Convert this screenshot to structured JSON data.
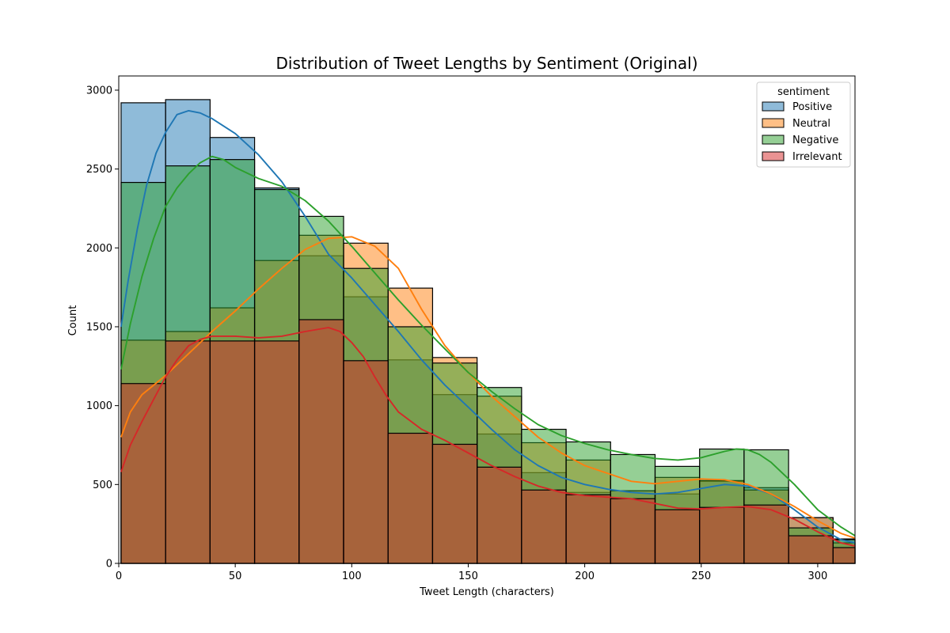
{
  "chart_data": {
    "type": "histogram",
    "title": "Distribution of Tweet Lengths by Sentiment (Original)",
    "xlabel": "Tweet Length (characters)",
    "ylabel": "Count",
    "xlim": [
      0,
      316
    ],
    "ylim": [
      0,
      3090
    ],
    "xticks": [
      "0",
      "50",
      "100",
      "150",
      "200",
      "250",
      "300"
    ],
    "yticks": [
      "0",
      "500",
      "1000",
      "1500",
      "2000",
      "2500",
      "3000"
    ],
    "bin_edges": [
      1,
      20.1,
      39.2,
      58.3,
      77.4,
      96.5,
      115.6,
      134.7,
      153.8,
      172.9,
      192,
      211.1,
      230.2,
      249.3,
      268.4,
      287.5,
      306.6,
      316
    ],
    "legend": {
      "title": "sentiment",
      "position": "upper right"
    },
    "series": [
      {
        "name": "Positive",
        "color": "#1f77b4",
        "counts": [
          2920,
          2940,
          2700,
          2380,
          1950,
          1690,
          1290,
          1070,
          820,
          575,
          450,
          460,
          440,
          520,
          480,
          290,
          155
        ],
        "kde": [
          [
            1,
            1500
          ],
          [
            4,
            1790
          ],
          [
            8,
            2120
          ],
          [
            12,
            2400
          ],
          [
            16,
            2600
          ],
          [
            20,
            2730
          ],
          [
            25,
            2845
          ],
          [
            30,
            2870
          ],
          [
            35,
            2855
          ],
          [
            40,
            2820
          ],
          [
            50,
            2725
          ],
          [
            60,
            2590
          ],
          [
            70,
            2420
          ],
          [
            80,
            2200
          ],
          [
            90,
            1960
          ],
          [
            100,
            1810
          ],
          [
            110,
            1640
          ],
          [
            120,
            1470
          ],
          [
            130,
            1290
          ],
          [
            140,
            1130
          ],
          [
            150,
            990
          ],
          [
            160,
            850
          ],
          [
            170,
            720
          ],
          [
            180,
            620
          ],
          [
            190,
            545
          ],
          [
            200,
            500
          ],
          [
            210,
            470
          ],
          [
            220,
            450
          ],
          [
            230,
            440
          ],
          [
            240,
            450
          ],
          [
            250,
            475
          ],
          [
            260,
            500
          ],
          [
            270,
            490
          ],
          [
            280,
            440
          ],
          [
            290,
            340
          ],
          [
            300,
            230
          ],
          [
            310,
            150
          ],
          [
            316,
            130
          ]
        ]
      },
      {
        "name": "Neutral",
        "color": "#ff7f0e",
        "counts": [
          1415,
          1470,
          1620,
          1920,
          2080,
          2030,
          1745,
          1305,
          1060,
          765,
          655,
          460,
          545,
          525,
          465,
          290,
          130
        ],
        "kde": [
          [
            1,
            800
          ],
          [
            5,
            960
          ],
          [
            10,
            1070
          ],
          [
            20,
            1190
          ],
          [
            30,
            1330
          ],
          [
            40,
            1470
          ],
          [
            50,
            1600
          ],
          [
            60,
            1740
          ],
          [
            70,
            1870
          ],
          [
            80,
            1990
          ],
          [
            90,
            2060
          ],
          [
            100,
            2070
          ],
          [
            110,
            2010
          ],
          [
            120,
            1870
          ],
          [
            130,
            1610
          ],
          [
            140,
            1380
          ],
          [
            150,
            1210
          ],
          [
            160,
            1060
          ],
          [
            170,
            930
          ],
          [
            180,
            800
          ],
          [
            190,
            700
          ],
          [
            200,
            620
          ],
          [
            210,
            570
          ],
          [
            220,
            520
          ],
          [
            230,
            505
          ],
          [
            240,
            520
          ],
          [
            250,
            535
          ],
          [
            260,
            530
          ],
          [
            270,
            500
          ],
          [
            280,
            440
          ],
          [
            290,
            360
          ],
          [
            300,
            270
          ],
          [
            310,
            190
          ],
          [
            316,
            160
          ]
        ]
      },
      {
        "name": "Negative",
        "color": "#2ca02c",
        "counts": [
          2415,
          2520,
          2560,
          2370,
          2200,
          1870,
          1500,
          1270,
          1115,
          850,
          770,
          690,
          615,
          725,
          720,
          225,
          150
        ],
        "kde": [
          [
            1,
            1230
          ],
          [
            5,
            1520
          ],
          [
            10,
            1820
          ],
          [
            15,
            2060
          ],
          [
            20,
            2260
          ],
          [
            25,
            2380
          ],
          [
            30,
            2470
          ],
          [
            35,
            2540
          ],
          [
            40,
            2580
          ],
          [
            45,
            2560
          ],
          [
            50,
            2510
          ],
          [
            60,
            2440
          ],
          [
            70,
            2390
          ],
          [
            80,
            2300
          ],
          [
            90,
            2170
          ],
          [
            100,
            2010
          ],
          [
            110,
            1840
          ],
          [
            120,
            1670
          ],
          [
            130,
            1510
          ],
          [
            140,
            1360
          ],
          [
            150,
            1210
          ],
          [
            160,
            1090
          ],
          [
            170,
            980
          ],
          [
            180,
            880
          ],
          [
            190,
            810
          ],
          [
            200,
            760
          ],
          [
            210,
            720
          ],
          [
            220,
            690
          ],
          [
            230,
            665
          ],
          [
            240,
            655
          ],
          [
            250,
            670
          ],
          [
            260,
            710
          ],
          [
            265,
            725
          ],
          [
            270,
            720
          ],
          [
            275,
            690
          ],
          [
            280,
            640
          ],
          [
            290,
            500
          ],
          [
            300,
            340
          ],
          [
            310,
            230
          ],
          [
            316,
            175
          ]
        ]
      },
      {
        "name": "Irrelevant",
        "color": "#d62728",
        "counts": [
          1140,
          1410,
          1410,
          1410,
          1545,
          1285,
          825,
          755,
          610,
          465,
          435,
          410,
          340,
          355,
          370,
          175,
          100
        ],
        "kde": [
          [
            1,
            580
          ],
          [
            5,
            750
          ],
          [
            10,
            900
          ],
          [
            15,
            1040
          ],
          [
            20,
            1180
          ],
          [
            25,
            1290
          ],
          [
            30,
            1380
          ],
          [
            35,
            1420
          ],
          [
            40,
            1440
          ],
          [
            50,
            1440
          ],
          [
            60,
            1430
          ],
          [
            70,
            1440
          ],
          [
            80,
            1470
          ],
          [
            90,
            1495
          ],
          [
            95,
            1470
          ],
          [
            100,
            1400
          ],
          [
            105,
            1310
          ],
          [
            110,
            1180
          ],
          [
            115,
            1060
          ],
          [
            120,
            960
          ],
          [
            130,
            850
          ],
          [
            140,
            780
          ],
          [
            150,
            700
          ],
          [
            160,
            620
          ],
          [
            170,
            550
          ],
          [
            180,
            490
          ],
          [
            190,
            450
          ],
          [
            200,
            430
          ],
          [
            210,
            420
          ],
          [
            220,
            410
          ],
          [
            230,
            380
          ],
          [
            240,
            350
          ],
          [
            250,
            345
          ],
          [
            260,
            355
          ],
          [
            270,
            360
          ],
          [
            280,
            340
          ],
          [
            290,
            280
          ],
          [
            300,
            200
          ],
          [
            310,
            130
          ],
          [
            316,
            110
          ]
        ]
      }
    ]
  }
}
